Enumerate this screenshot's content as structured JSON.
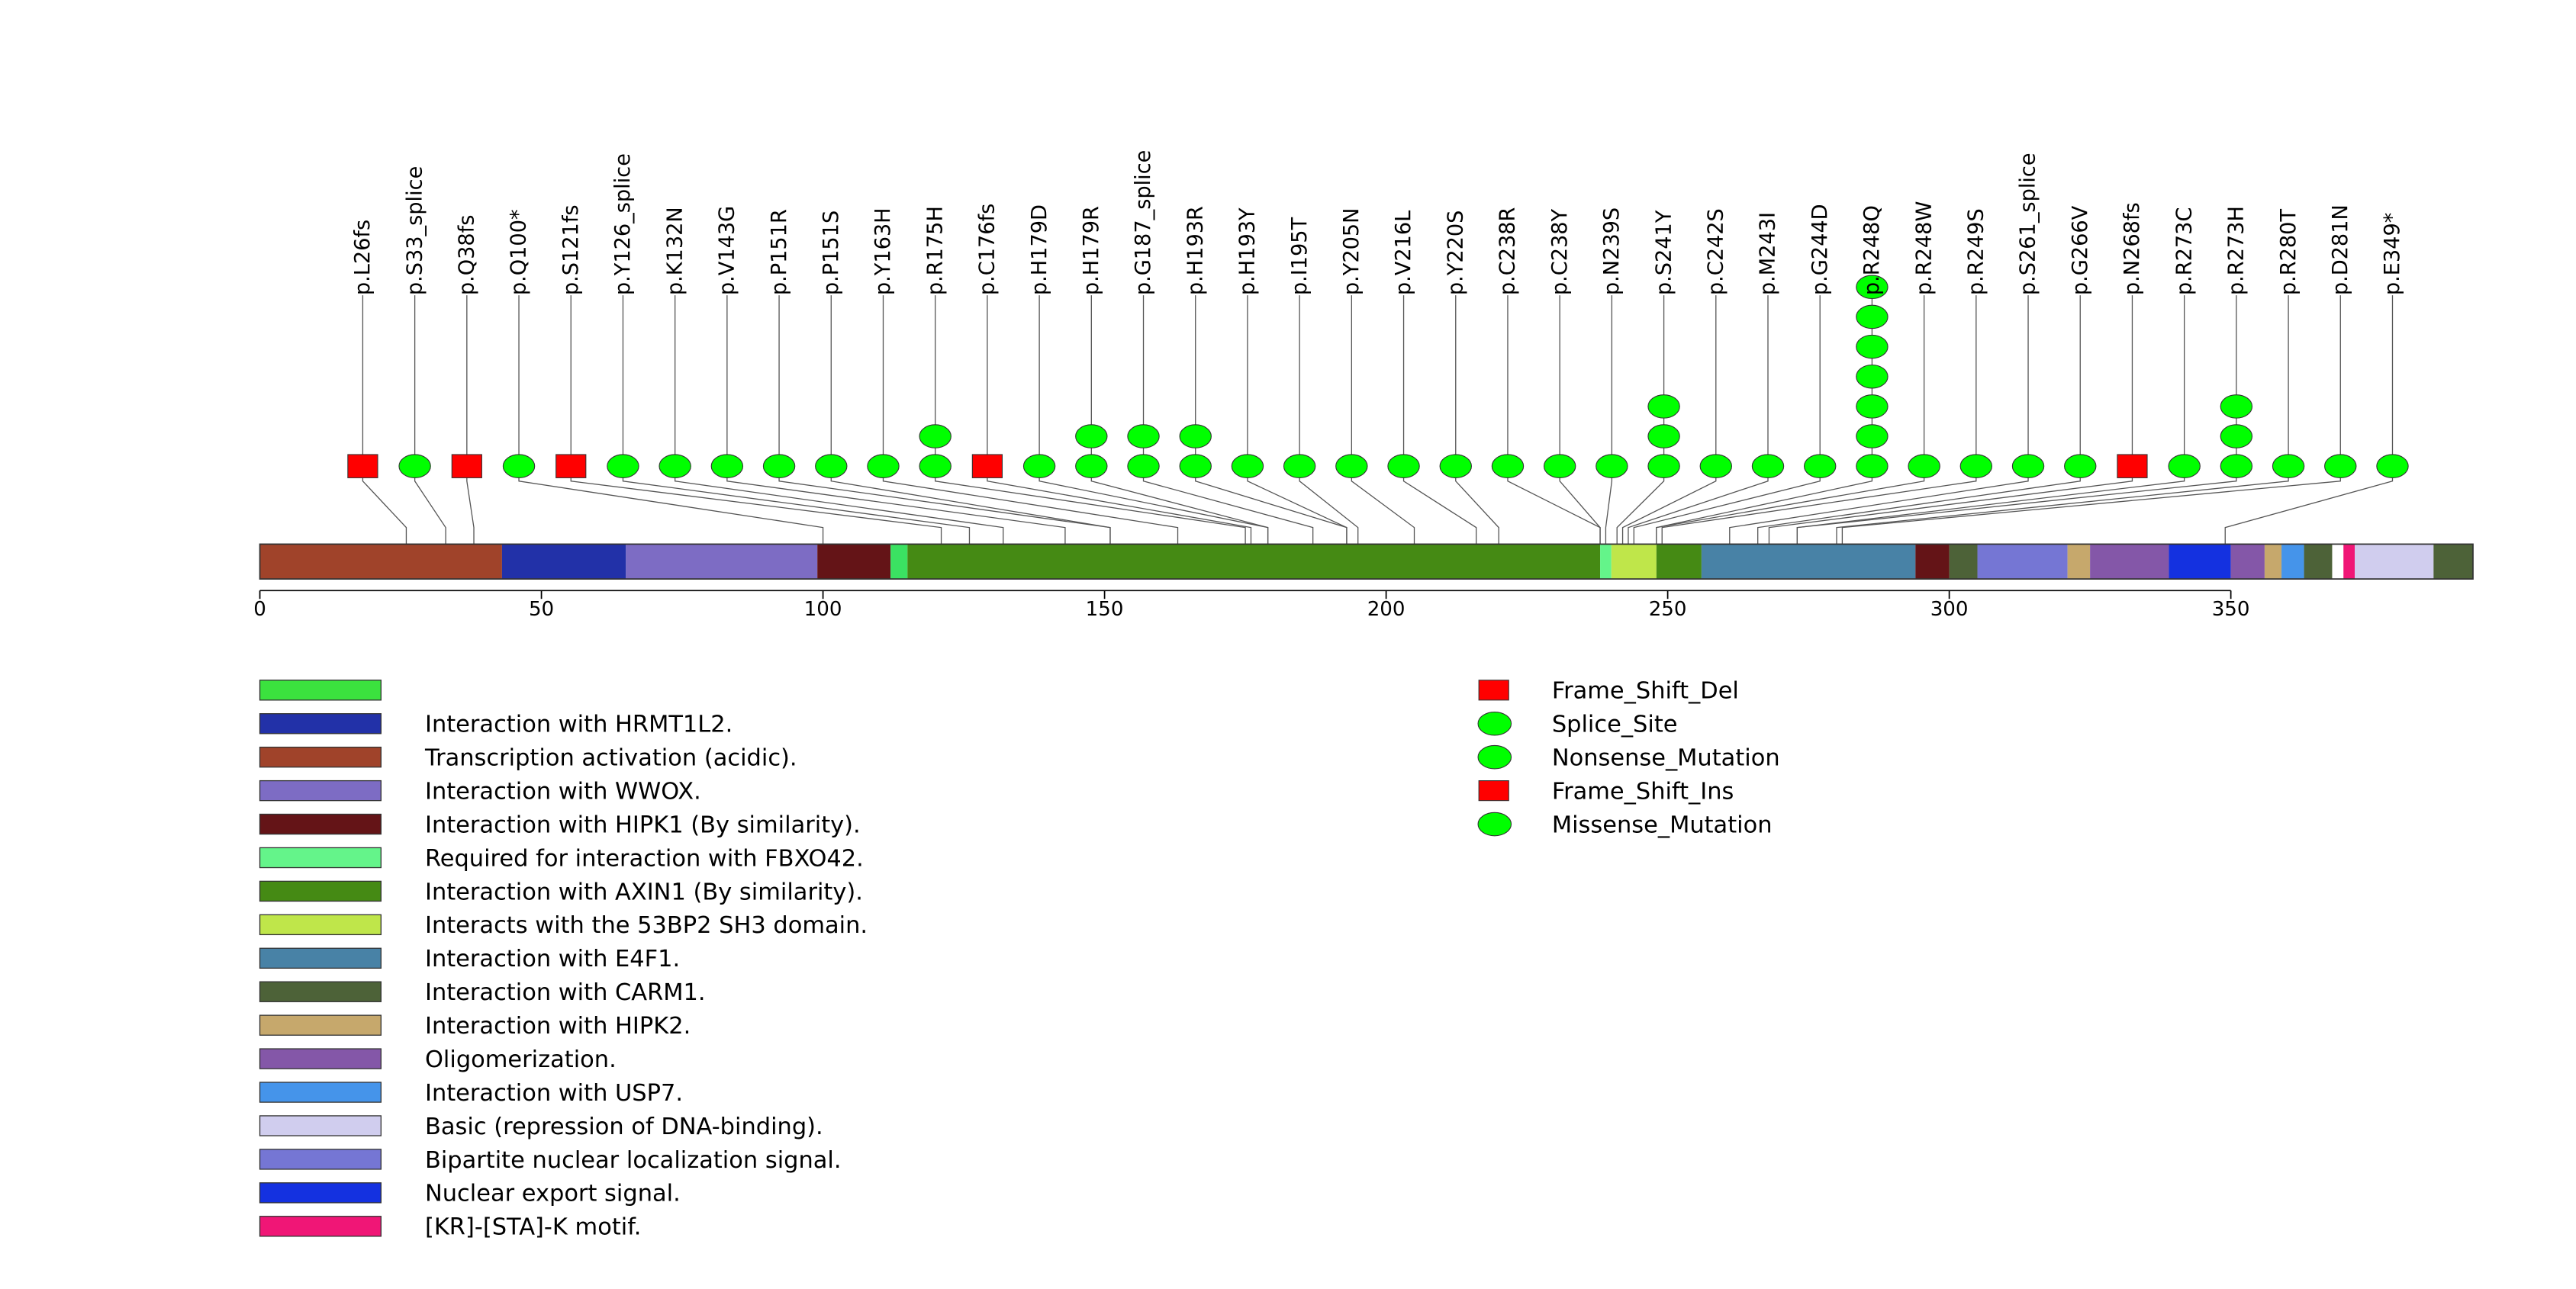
{
  "chart_data": {
    "type": "lollipop",
    "protein_length": 393,
    "x_axis": {
      "min": 0,
      "max": 393,
      "ticks": [
        0,
        50,
        100,
        150,
        200,
        250,
        300,
        350
      ]
    },
    "domains": [
      {
        "start": 0,
        "end": 43,
        "color": "#A0432A",
        "label": "Transcription activation (acidic)."
      },
      {
        "start": 43,
        "end": 65,
        "color": "#2231A8",
        "label": "Interaction with HRMT1L2."
      },
      {
        "start": 65,
        "end": 99,
        "color": "#7D6CC4",
        "label": "Interaction with WWOX."
      },
      {
        "start": 99,
        "end": 112,
        "color": "#641417",
        "label": "Interaction with HIPK1 (By similarity)."
      },
      {
        "start": 112,
        "end": 115,
        "color": "#3BE262",
        "label": ""
      },
      {
        "start": 115,
        "end": 238,
        "color": "#458A14",
        "label": "Interaction with AXIN1 (By similarity)."
      },
      {
        "start": 238,
        "end": 240,
        "color": "#64F48A",
        "label": "Required for interaction with FBXO42."
      },
      {
        "start": 240,
        "end": 248,
        "color": "#BFE64A",
        "label": "Interacts with the 53BP2 SH3 domain."
      },
      {
        "start": 248,
        "end": 256,
        "color": "#458A14",
        "label": ""
      },
      {
        "start": 256,
        "end": 294,
        "color": "#4882A6",
        "label": "Interaction with E4F1."
      },
      {
        "start": 294,
        "end": 300,
        "color": "#641417",
        "label": ""
      },
      {
        "start": 300,
        "end": 305,
        "color": "#4D6238",
        "label": "Interaction with CARM1."
      },
      {
        "start": 305,
        "end": 321,
        "color": "#7576D4",
        "label": "Bipartite nuclear localization signal."
      },
      {
        "start": 321,
        "end": 325,
        "color": "#C6A86C",
        "label": "Interaction with HIPK2."
      },
      {
        "start": 325,
        "end": 339,
        "color": "#8457A8",
        "label": "Oligomerization."
      },
      {
        "start": 339,
        "end": 350,
        "color": "#1431E0",
        "label": "Nuclear export signal."
      },
      {
        "start": 350,
        "end": 356,
        "color": "#8457A8",
        "label": ""
      },
      {
        "start": 356,
        "end": 359,
        "color": "#C6A86C",
        "label": ""
      },
      {
        "start": 359,
        "end": 363,
        "color": "#4594EA",
        "label": "Interaction with USP7."
      },
      {
        "start": 363,
        "end": 368,
        "color": "#4D6238",
        "label": ""
      },
      {
        "start": 368,
        "end": 370,
        "color": "#FFFFFF",
        "label": ""
      },
      {
        "start": 370,
        "end": 372,
        "color": "#F01676",
        "label": "[KR]-[STA]-K motif."
      },
      {
        "start": 372,
        "end": 386,
        "color": "#D0CDEE",
        "label": "Basic (repression of DNA-binding)."
      },
      {
        "start": 386,
        "end": 393,
        "color": "#4D6238",
        "label": ""
      }
    ],
    "mutations": [
      {
        "label": "p.L26fs",
        "position": 26,
        "count": 1,
        "type": "Frame_Shift_Del"
      },
      {
        "label": "p.S33_splice",
        "position": 33,
        "count": 1,
        "type": "Splice_Site"
      },
      {
        "label": "p.Q38fs",
        "position": 38,
        "count": 1,
        "type": "Frame_Shift_Del"
      },
      {
        "label": "p.Q100*",
        "position": 100,
        "count": 1,
        "type": "Nonsense_Mutation"
      },
      {
        "label": "p.S121fs",
        "position": 121,
        "count": 1,
        "type": "Frame_Shift_Del"
      },
      {
        "label": "p.Y126_splice",
        "position": 126,
        "count": 1,
        "type": "Splice_Site"
      },
      {
        "label": "p.K132N",
        "position": 132,
        "count": 1,
        "type": "Missense_Mutation"
      },
      {
        "label": "p.V143G",
        "position": 143,
        "count": 1,
        "type": "Missense_Mutation"
      },
      {
        "label": "p.P151R",
        "position": 151,
        "count": 1,
        "type": "Missense_Mutation"
      },
      {
        "label": "p.P151S",
        "position": 151,
        "count": 1,
        "type": "Missense_Mutation"
      },
      {
        "label": "p.Y163H",
        "position": 163,
        "count": 1,
        "type": "Missense_Mutation"
      },
      {
        "label": "p.R175H",
        "position": 175,
        "count": 2,
        "type": "Missense_Mutation"
      },
      {
        "label": "p.C176fs",
        "position": 176,
        "count": 1,
        "type": "Frame_Shift_Del"
      },
      {
        "label": "p.H179D",
        "position": 179,
        "count": 1,
        "type": "Missense_Mutation"
      },
      {
        "label": "p.H179R",
        "position": 179,
        "count": 2,
        "type": "Missense_Mutation"
      },
      {
        "label": "p.G187_splice",
        "position": 187,
        "count": 2,
        "type": "Splice_Site"
      },
      {
        "label": "p.H193R",
        "position": 193,
        "count": 2,
        "type": "Missense_Mutation"
      },
      {
        "label": "p.H193Y",
        "position": 193,
        "count": 1,
        "type": "Missense_Mutation"
      },
      {
        "label": "p.I195T",
        "position": 195,
        "count": 1,
        "type": "Missense_Mutation"
      },
      {
        "label": "p.Y205N",
        "position": 205,
        "count": 1,
        "type": "Missense_Mutation"
      },
      {
        "label": "p.V216L",
        "position": 216,
        "count": 1,
        "type": "Missense_Mutation"
      },
      {
        "label": "p.Y220S",
        "position": 220,
        "count": 1,
        "type": "Missense_Mutation"
      },
      {
        "label": "p.C238R",
        "position": 238,
        "count": 1,
        "type": "Missense_Mutation"
      },
      {
        "label": "p.C238Y",
        "position": 238,
        "count": 1,
        "type": "Missense_Mutation"
      },
      {
        "label": "p.N239S",
        "position": 239,
        "count": 1,
        "type": "Missense_Mutation"
      },
      {
        "label": "p.S241Y",
        "position": 241,
        "count": 3,
        "type": "Missense_Mutation"
      },
      {
        "label": "p.C242S",
        "position": 242,
        "count": 1,
        "type": "Missense_Mutation"
      },
      {
        "label": "p.M243I",
        "position": 243,
        "count": 1,
        "type": "Missense_Mutation"
      },
      {
        "label": "p.G244D",
        "position": 244,
        "count": 1,
        "type": "Missense_Mutation"
      },
      {
        "label": "p.R248Q",
        "position": 248,
        "count": 7,
        "type": "Missense_Mutation"
      },
      {
        "label": "p.R248W",
        "position": 248,
        "count": 1,
        "type": "Missense_Mutation"
      },
      {
        "label": "p.R249S",
        "position": 249,
        "count": 1,
        "type": "Missense_Mutation"
      },
      {
        "label": "p.S261_splice",
        "position": 261,
        "count": 1,
        "type": "Splice_Site"
      },
      {
        "label": "p.G266V",
        "position": 266,
        "count": 1,
        "type": "Missense_Mutation"
      },
      {
        "label": "p.N268fs",
        "position": 268,
        "count": 1,
        "type": "Frame_Shift_Del"
      },
      {
        "label": "p.R273C",
        "position": 273,
        "count": 1,
        "type": "Missense_Mutation"
      },
      {
        "label": "p.R273H",
        "position": 273,
        "count": 3,
        "type": "Missense_Mutation"
      },
      {
        "label": "p.R280T",
        "position": 280,
        "count": 1,
        "type": "Missense_Mutation"
      },
      {
        "label": "p.D281N",
        "position": 281,
        "count": 1,
        "type": "Missense_Mutation"
      },
      {
        "label": "p.E349*",
        "position": 349,
        "count": 1,
        "type": "Nonsense_Mutation"
      }
    ],
    "domain_legend": [
      {
        "label": "",
        "color": "#3BE23E"
      },
      {
        "label": "Interaction with HRMT1L2.",
        "color": "#2231A8"
      },
      {
        "label": "Transcription activation (acidic).",
        "color": "#A0432A"
      },
      {
        "label": "Interaction with WWOX.",
        "color": "#7D6CC4"
      },
      {
        "label": "Interaction with HIPK1 (By similarity).",
        "color": "#641417"
      },
      {
        "label": "Required for interaction with FBXO42.",
        "color": "#64F48A"
      },
      {
        "label": "Interaction with AXIN1 (By similarity).",
        "color": "#458A14"
      },
      {
        "label": "Interacts with the 53BP2 SH3 domain.",
        "color": "#BFE64A"
      },
      {
        "label": "Interaction with E4F1.",
        "color": "#4882A6"
      },
      {
        "label": "Interaction with CARM1.",
        "color": "#4D6238"
      },
      {
        "label": "Interaction with HIPK2.",
        "color": "#C6A86C"
      },
      {
        "label": "Oligomerization.",
        "color": "#8457A8"
      },
      {
        "label": "Interaction with USP7.",
        "color": "#4594EA"
      },
      {
        "label": "Basic (repression of DNA-binding).",
        "color": "#D0CDEE"
      },
      {
        "label": "Bipartite nuclear localization signal.",
        "color": "#7576D4"
      },
      {
        "label": "Nuclear export signal.",
        "color": "#1431E0"
      },
      {
        "label": "[KR]-[STA]-K motif.",
        "color": "#F01676"
      }
    ],
    "mutation_legend": [
      {
        "label": "Frame_Shift_Del",
        "shape": "square",
        "color": "#FF0000"
      },
      {
        "label": "Splice_Site",
        "shape": "ellipse",
        "color": "#00FF00"
      },
      {
        "label": "Nonsense_Mutation",
        "shape": "ellipse",
        "color": "#00FF00"
      },
      {
        "label": "Frame_Shift_Ins",
        "shape": "square",
        "color": "#FF0000"
      },
      {
        "label": "Missense_Mutation",
        "shape": "ellipse",
        "color": "#00FF00"
      }
    ]
  }
}
